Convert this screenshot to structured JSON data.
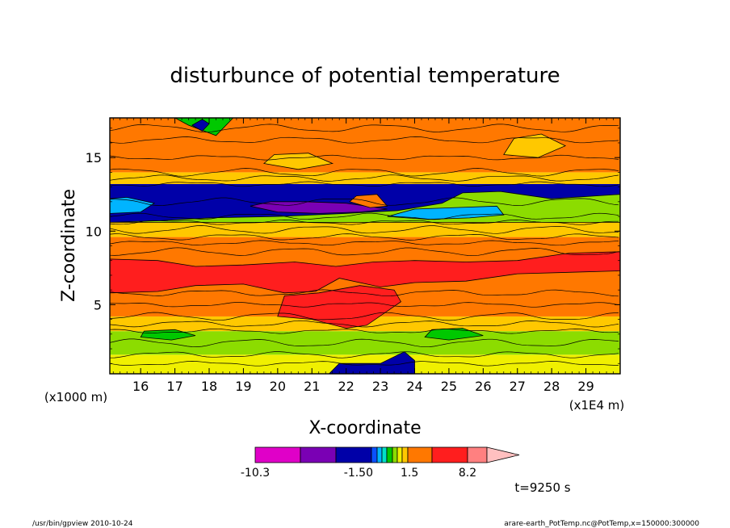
{
  "chart_data": {
    "type": "heatmap",
    "title": "disturbunce of potential temperature",
    "xlabel": "X-coordinate",
    "ylabel": "Z-coordinate",
    "x_unit": "(x1E4 m)",
    "y_unit": "(x1000 m)",
    "xlim": [
      15.1,
      30.0
    ],
    "ylim": [
      0.3,
      17.7
    ],
    "x_ticks": [
      "16",
      "17",
      "18",
      "19",
      "20",
      "21",
      "22",
      "23",
      "24",
      "25",
      "26",
      "27",
      "28",
      "29"
    ],
    "x_tick_values": [
      16,
      17,
      18,
      19,
      20,
      21,
      22,
      23,
      24,
      25,
      26,
      27,
      28,
      29
    ],
    "y_ticks": [
      "5",
      "10",
      "15"
    ],
    "y_tick_values": [
      5,
      10,
      15
    ],
    "colorbar": {
      "labels": [
        {
          "text": "-10.3",
          "at": -10.3
        },
        {
          "text": "-1.50",
          "at": -1.5
        },
        {
          "text": "1.5",
          "at": 1.5
        },
        {
          "text": "8.2",
          "at": 8.2
        }
      ],
      "levels": [
        {
          "color": "#e000c8"
        },
        {
          "color": "#7a00b4"
        },
        {
          "color": "#0000a8"
        },
        {
          "color": "#0a50ff"
        },
        {
          "color": "#00b4ff"
        },
        {
          "color": "#00e0c8"
        },
        {
          "color": "#00c800"
        },
        {
          "color": "#8cdc00"
        },
        {
          "color": "#f0f000"
        },
        {
          "color": "#ffc800"
        },
        {
          "color": "#ff7800"
        },
        {
          "color": "#ff1e1e"
        },
        {
          "color": "#ff8080"
        }
      ],
      "extend_color": "#ffc0c0"
    },
    "bands": [
      {
        "z0": 0.3,
        "z1": 1.6,
        "color": "#f0f000"
      },
      {
        "z0": 1.6,
        "z1": 3.2,
        "color": "#8cdc00"
      },
      {
        "z0": 3.2,
        "z1": 4.2,
        "color": "#ffc800"
      },
      {
        "z0": 4.2,
        "z1": 9.6,
        "color": "#ff7800"
      },
      {
        "z0": 9.6,
        "z1": 10.6,
        "color": "#ffc800"
      },
      {
        "z0": 10.6,
        "z1": 13.2,
        "color": "#0000a8"
      },
      {
        "z0": 13.2,
        "z1": 14.0,
        "color": "#ffc800"
      },
      {
        "z0": 14.0,
        "z1": 17.7,
        "color": "#ff7800"
      }
    ],
    "regions": [
      {
        "color": "#ff1e1e",
        "points": [
          [
            15.1,
            5.8
          ],
          [
            16.5,
            5.9
          ],
          [
            17.6,
            6.3
          ],
          [
            19.0,
            6.4
          ],
          [
            20.2,
            5.8
          ],
          [
            21.1,
            5.9
          ],
          [
            21.8,
            6.8
          ],
          [
            23.0,
            6.2
          ],
          [
            24.0,
            6.5
          ],
          [
            25.5,
            6.6
          ],
          [
            27.0,
            7.1
          ],
          [
            28.5,
            7.2
          ],
          [
            30.0,
            7.3
          ],
          [
            30.0,
            8.6
          ],
          [
            28.5,
            8.5
          ],
          [
            27.0,
            8.0
          ],
          [
            25.5,
            7.9
          ],
          [
            24.0,
            8.0
          ],
          [
            22.8,
            7.9
          ],
          [
            21.7,
            7.6
          ],
          [
            20.5,
            7.9
          ],
          [
            19.0,
            7.7
          ],
          [
            17.6,
            7.6
          ],
          [
            16.5,
            8.0
          ],
          [
            15.1,
            8.1
          ]
        ]
      },
      {
        "color": "#ff1e1e",
        "points": [
          [
            20.0,
            4.2
          ],
          [
            21.0,
            4.0
          ],
          [
            22.0,
            3.4
          ],
          [
            22.6,
            3.6
          ],
          [
            23.1,
            4.4
          ],
          [
            23.6,
            5.2
          ],
          [
            23.4,
            6.0
          ],
          [
            22.4,
            6.3
          ],
          [
            21.2,
            5.8
          ],
          [
            20.2,
            5.6
          ]
        ]
      },
      {
        "color": "#8cdc00",
        "points": [
          [
            15.1,
            10.6
          ],
          [
            16.5,
            10.7
          ],
          [
            18.0,
            10.9
          ],
          [
            20.0,
            11.0
          ],
          [
            22.0,
            11.2
          ],
          [
            23.5,
            11.4
          ],
          [
            24.8,
            11.9
          ],
          [
            25.4,
            12.6
          ],
          [
            26.5,
            12.7
          ],
          [
            28.0,
            12.2
          ],
          [
            30.0,
            12.5
          ],
          [
            30.0,
            10.6
          ]
        ]
      },
      {
        "color": "#00b4ff",
        "points": [
          [
            15.1,
            11.2
          ],
          [
            16.0,
            11.3
          ],
          [
            16.4,
            11.9
          ],
          [
            15.6,
            12.3
          ],
          [
            15.1,
            12.2
          ]
        ]
      },
      {
        "color": "#00b4ff",
        "points": [
          [
            23.2,
            11.0
          ],
          [
            24.4,
            10.8
          ],
          [
            25.6,
            10.9
          ],
          [
            26.6,
            11.1
          ],
          [
            26.4,
            11.7
          ],
          [
            25.2,
            11.6
          ],
          [
            24.0,
            11.5
          ]
        ]
      },
      {
        "color": "#7a00b4",
        "points": [
          [
            19.2,
            11.7
          ],
          [
            20.0,
            11.3
          ],
          [
            21.2,
            11.2
          ],
          [
            22.4,
            11.3
          ],
          [
            23.2,
            11.5
          ],
          [
            22.0,
            11.9
          ],
          [
            20.8,
            12.0
          ],
          [
            19.8,
            12.0
          ]
        ]
      },
      {
        "color": "#0000a8",
        "points": [
          [
            18.0,
            0.3
          ],
          [
            21.5,
            0.3
          ],
          [
            21.8,
            1.0
          ],
          [
            23.0,
            1.0
          ],
          [
            23.7,
            1.8
          ],
          [
            24.0,
            1.2
          ],
          [
            24.0,
            0.3
          ],
          [
            18.0,
            0.3
          ]
        ]
      },
      {
        "color": "#00c800",
        "points": [
          [
            17.0,
            17.7
          ],
          [
            17.4,
            17.2
          ],
          [
            18.2,
            16.5
          ],
          [
            18.7,
            17.7
          ]
        ]
      },
      {
        "color": "#0000a8",
        "points": [
          [
            17.5,
            17.2
          ],
          [
            17.8,
            16.8
          ],
          [
            18.0,
            17.3
          ],
          [
            17.8,
            17.6
          ]
        ]
      },
      {
        "color": "#ff7800",
        "points": [
          [
            22.1,
            12.0
          ],
          [
            22.7,
            11.6
          ],
          [
            23.2,
            11.7
          ],
          [
            22.9,
            12.5
          ],
          [
            22.3,
            12.4
          ]
        ]
      },
      {
        "color": "#00c800",
        "points": [
          [
            16.0,
            2.8
          ],
          [
            16.9,
            2.6
          ],
          [
            17.6,
            2.9
          ],
          [
            17.0,
            3.3
          ],
          [
            16.1,
            3.2
          ]
        ]
      },
      {
        "color": "#00c800",
        "points": [
          [
            24.3,
            2.8
          ],
          [
            25.0,
            2.6
          ],
          [
            26.0,
            2.9
          ],
          [
            25.4,
            3.4
          ],
          [
            24.5,
            3.3
          ]
        ]
      },
      {
        "color": "#ffc800",
        "points": [
          [
            26.6,
            15.2
          ],
          [
            27.6,
            15.0
          ],
          [
            28.4,
            15.8
          ],
          [
            27.7,
            16.6
          ],
          [
            26.9,
            16.3
          ]
        ]
      },
      {
        "color": "#ffc800",
        "points": [
          [
            19.6,
            14.6
          ],
          [
            20.6,
            14.2
          ],
          [
            21.6,
            14.6
          ],
          [
            20.9,
            15.3
          ],
          [
            19.9,
            15.2
          ]
        ]
      }
    ],
    "contours_z": [
      1.0,
      1.6,
      2.4,
      3.2,
      3.7,
      4.2,
      5.0,
      5.8,
      8.6,
      9.2,
      9.6,
      10.1,
      10.6,
      11.0,
      12.0,
      13.2,
      13.6,
      14.0,
      15.0,
      16.2,
      17.0
    ]
  },
  "page": {
    "time_label": "t=9250 s",
    "footer_left": "/usr/bin/gpview  2010-10-24",
    "footer_right": "arare-earth_PotTemp.nc@PotTemp,x=150000:300000"
  }
}
